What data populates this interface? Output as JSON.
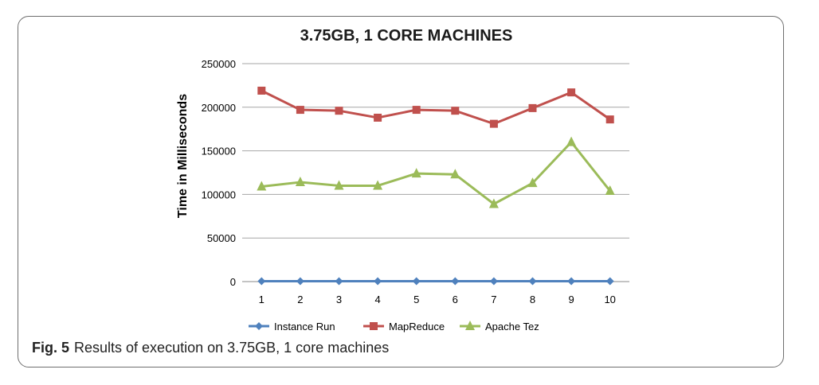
{
  "caption": {
    "label": "Fig. 5",
    "text": "Results of execution on 3.75GB, 1 core machines"
  },
  "chart_data": {
    "type": "line",
    "title": "3.75GB, 1 CORE MACHINES",
    "xlabel": "",
    "ylabel": "Time in Milliseconds",
    "categories": [
      "1",
      "2",
      "3",
      "4",
      "5",
      "6",
      "7",
      "8",
      "9",
      "10"
    ],
    "ylim": [
      0,
      250000
    ],
    "yticks": [
      "0",
      "50000",
      "100000",
      "150000",
      "200000",
      "250000"
    ],
    "grid": true,
    "legend": "bottom",
    "series": [
      {
        "name": "Instance Run",
        "color": "#4f81bd",
        "marker": "diamond",
        "values": [
          500,
          500,
          500,
          500,
          500,
          500,
          500,
          500,
          500,
          500
        ]
      },
      {
        "name": "MapReduce",
        "color": "#c0504d",
        "marker": "square",
        "values": [
          219000,
          197000,
          196000,
          188000,
          197000,
          196000,
          181000,
          199000,
          217000,
          186000
        ]
      },
      {
        "name": "Apache Tez",
        "color": "#9bbb59",
        "marker": "triangle",
        "values": [
          109000,
          114000,
          110000,
          110000,
          124000,
          123000,
          89000,
          113000,
          160000,
          104000
        ]
      }
    ]
  }
}
